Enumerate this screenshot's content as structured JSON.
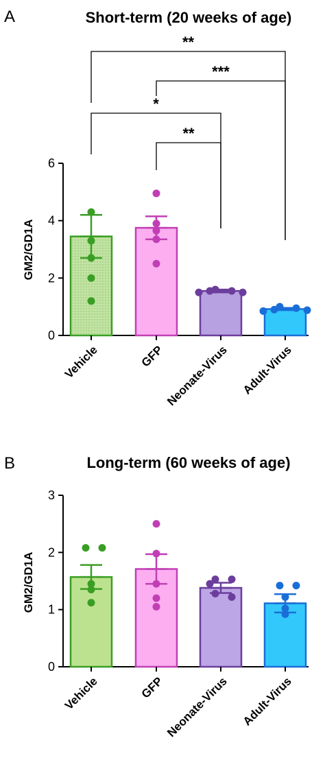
{
  "chart_data": [
    {
      "type": "bar",
      "panel": "A",
      "title": "Short-term (20 weeks of age)",
      "ylabel": "GM2/GD1A",
      "ylim": [
        0,
        6
      ],
      "yticks": [
        0,
        2,
        4,
        6
      ],
      "categories": [
        "Vehicle",
        "GFP",
        "Neonate-Virus",
        "Adult-Virus"
      ],
      "values": [
        3.45,
        3.75,
        1.55,
        0.92
      ],
      "error": [
        0.75,
        0.4,
        0.05,
        0.04
      ],
      "points": [
        [
          4.3,
          3.3,
          2.7,
          2.0,
          1.2
        ],
        [
          4.95,
          3.9,
          3.65,
          3.35,
          2.5
        ],
        [
          1.6,
          1.55,
          1.55,
          1.5,
          1.5
        ],
        [
          1.0,
          0.95,
          0.9,
          0.88,
          0.85
        ]
      ],
      "colors": {
        "fill": [
          "#c2e3a4",
          "#fcaef0",
          "#b7a1e0",
          "#33c8fb"
        ],
        "stroke": [
          "#3a9e25",
          "#c13fb5",
          "#6b3d9c",
          "#1a6ed8"
        ]
      },
      "comparisons": [
        {
          "from": "Vehicle",
          "to": "Adult-Virus",
          "label": "**"
        },
        {
          "from": "GFP",
          "to": "Adult-Virus",
          "label": "***"
        },
        {
          "from": "Vehicle",
          "to": "Neonate-Virus",
          "label": "*"
        },
        {
          "from": "GFP",
          "to": "Neonate-Virus",
          "label": "**"
        }
      ]
    },
    {
      "type": "bar",
      "panel": "B",
      "title": "Long-term (60 weeks of age)",
      "ylabel": "GM2/GD1A",
      "ylim": [
        0,
        3
      ],
      "yticks": [
        0,
        1,
        2,
        3
      ],
      "categories": [
        "Vehicle",
        "GFP",
        "Neonate-Virus",
        "Adult-Virus"
      ],
      "values": [
        1.57,
        1.71,
        1.38,
        1.11
      ],
      "error": [
        0.21,
        0.26,
        0.09,
        0.16
      ],
      "points": [
        [
          2.08,
          2.08,
          1.45,
          1.35,
          1.12
        ],
        [
          2.5,
          1.98,
          1.45,
          1.2,
          1.05
        ],
        [
          1.53,
          1.53,
          1.45,
          1.28,
          1.22
        ],
        [
          1.42,
          1.42,
          1.22,
          1.02,
          0.92
        ]
      ],
      "colors": {
        "fill": [
          "#bde28f",
          "#fcaef0",
          "#bda6e6",
          "#33c8fb"
        ],
        "stroke": [
          "#3a9e25",
          "#c13fb5",
          "#6b3d9c",
          "#1a6ed8"
        ]
      },
      "comparisons": []
    }
  ]
}
